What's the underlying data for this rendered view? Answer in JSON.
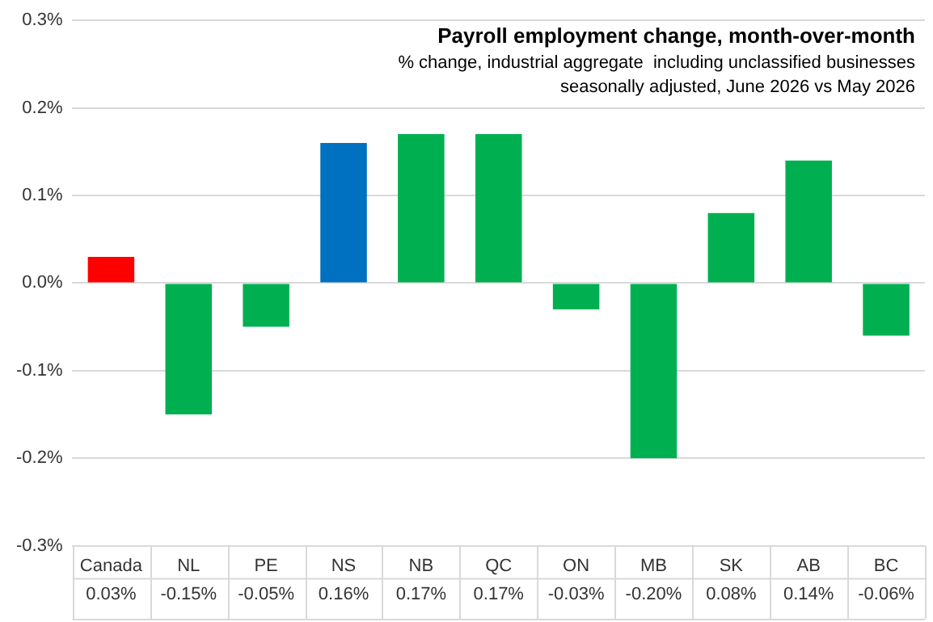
{
  "chart_data": {
    "type": "bar",
    "title": "Payroll employment change, month-over-month",
    "subtitle": "% change, industrial aggregate  including unclassified businesses\nseasonally adjusted, June 2026 vs May 2026",
    "categories": [
      "Canada",
      "NL",
      "PE",
      "NS",
      "NB",
      "QC",
      "ON",
      "MB",
      "SK",
      "AB",
      "BC"
    ],
    "values": [
      0.03,
      -0.15,
      -0.05,
      0.16,
      0.17,
      0.17,
      -0.03,
      -0.2,
      0.08,
      0.14,
      -0.06
    ],
    "colors": [
      "#ff0000",
      "#00b050",
      "#00b050",
      "#0070c0",
      "#00b050",
      "#00b050",
      "#00b050",
      "#00b050",
      "#00b050",
      "#00b050",
      "#00b050"
    ],
    "value_labels": [
      "0.03%",
      "-0.15%",
      "-0.05%",
      "0.16%",
      "0.17%",
      "0.17%",
      "-0.03%",
      "-0.20%",
      "0.08%",
      "0.14%",
      "-0.06%"
    ],
    "ylim": [
      -0.3,
      0.3
    ],
    "yticks": [
      {
        "value": -0.3,
        "label": "-0.3%"
      },
      {
        "value": -0.2,
        "label": "-0.2%"
      },
      {
        "value": -0.1,
        "label": "-0.1%"
      },
      {
        "value": 0,
        "label": "0.0%"
      },
      {
        "value": 0.1,
        "label": "0.1%"
      },
      {
        "value": 0.2,
        "label": "0.2%"
      },
      {
        "value": 0.3,
        "label": "0.3%"
      }
    ],
    "grid": "y",
    "legend": false
  }
}
